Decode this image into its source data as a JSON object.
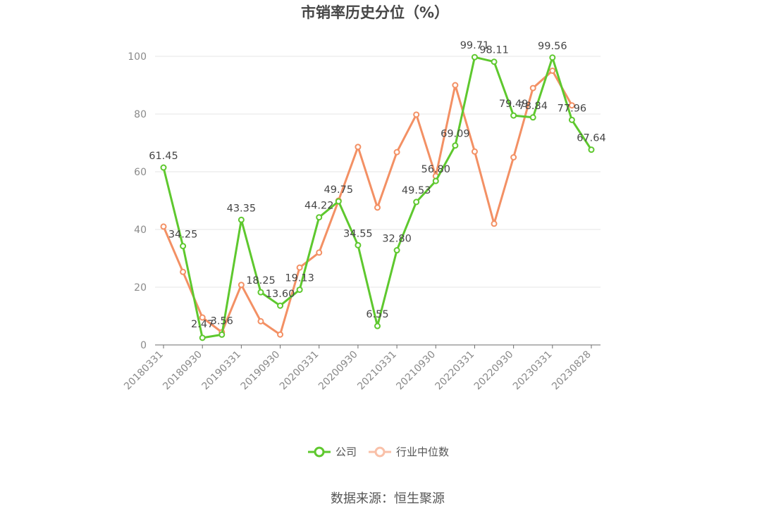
{
  "chart_data": {
    "type": "line",
    "title": "市销率历史分位（%）",
    "x": [
      "20180331",
      "20180630",
      "20180930",
      "20181231",
      "20190331",
      "20190630",
      "20190930",
      "20191231",
      "20200331",
      "20200630",
      "20200930",
      "20201231",
      "20210331",
      "20210630",
      "20210930",
      "20211231",
      "20220331",
      "20220630",
      "20220930",
      "20221231",
      "20230331",
      "20230630",
      "20230828"
    ],
    "x_tick_labels": [
      "20180331",
      "20180930",
      "20190331",
      "20190930",
      "20200331",
      "20200930",
      "20210331",
      "20210930",
      "20220331",
      "20220930",
      "20230331",
      "20230828"
    ],
    "ylim": [
      0,
      100
    ],
    "y_ticks": [
      0,
      20,
      40,
      60,
      80,
      100
    ],
    "grid": true,
    "legend_position": "bottom",
    "series": [
      {
        "name": "公司",
        "color": "#5ec82e",
        "values": [
          61.45,
          34.25,
          2.47,
          3.56,
          43.35,
          18.25,
          13.6,
          19.13,
          44.22,
          49.75,
          34.55,
          6.55,
          32.8,
          49.53,
          56.8,
          69.09,
          99.71,
          98.11,
          79.49,
          78.84,
          99.56,
          77.96,
          67.64
        ],
        "labels": [
          "61.45",
          "34.25",
          "2.47",
          "3.56",
          "43.35",
          "18.25",
          "13.60",
          "19.13",
          "44.22",
          "49.75",
          "34.55",
          "6.55",
          "32.80",
          "49.53",
          "56.80",
          "69.09",
          "99.71",
          "98.11",
          "79.49",
          "78.84",
          "99.56",
          "77.96",
          "67.64"
        ]
      },
      {
        "name": "行业中位数",
        "color": "#f39064",
        "values": [
          41.0,
          25.3,
          9.5,
          4.4,
          20.8,
          8.2,
          3.6,
          26.8,
          32.0,
          50.0,
          68.6,
          47.6,
          66.8,
          79.8,
          58.5,
          90.0,
          67.0,
          42.0,
          65.0,
          89.0,
          95.0,
          83.0,
          null
        ]
      }
    ]
  },
  "legend": {
    "company": "公司",
    "industry": "行业中位数"
  },
  "footer": {
    "source": "数据来源：恒生聚源"
  }
}
